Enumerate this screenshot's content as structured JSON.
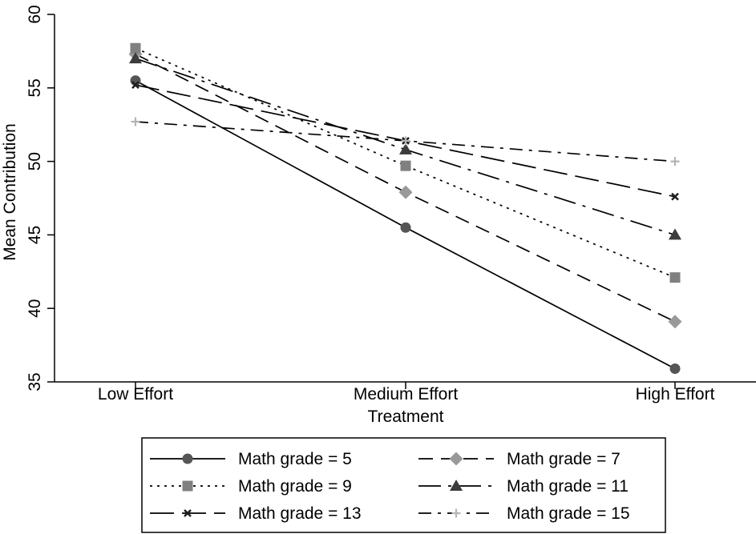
{
  "chart_data": {
    "type": "line",
    "categories": [
      "Low Effort",
      "Medium Effort",
      "High Effort"
    ],
    "xlabel": "Treatment",
    "ylabel": "Mean Contribution",
    "ylim": [
      35,
      60
    ],
    "yticks": [
      35,
      40,
      45,
      50,
      55,
      60
    ],
    "grid": false,
    "legend_position": "bottom",
    "series": [
      {
        "name": "Math grade = 5",
        "values": [
          55.5,
          45.5,
          35.9
        ],
        "color": "#555555",
        "marker": "circle",
        "dash": "solid"
      },
      {
        "name": "Math grade = 7",
        "values": [
          57.3,
          47.9,
          39.1
        ],
        "color": "#999999",
        "marker": "diamond",
        "dash": "dash"
      },
      {
        "name": "Math grade = 9",
        "values": [
          57.7,
          49.7,
          42.1
        ],
        "color": "#808080",
        "marker": "square",
        "dash": "dot"
      },
      {
        "name": "Math grade = 11",
        "values": [
          57.0,
          50.8,
          45.0
        ],
        "color": "#3c3c3c",
        "marker": "triangle",
        "dash": "longdashdot"
      },
      {
        "name": "Math grade = 13",
        "values": [
          55.2,
          51.4,
          47.6
        ],
        "color": "#1e1e1e",
        "marker": "x",
        "dash": "longdash"
      },
      {
        "name": "Math grade = 15",
        "values": [
          52.7,
          51.4,
          50.0
        ],
        "color": "#b4b4b4",
        "marker": "plus",
        "dash": "dashdot"
      }
    ]
  }
}
